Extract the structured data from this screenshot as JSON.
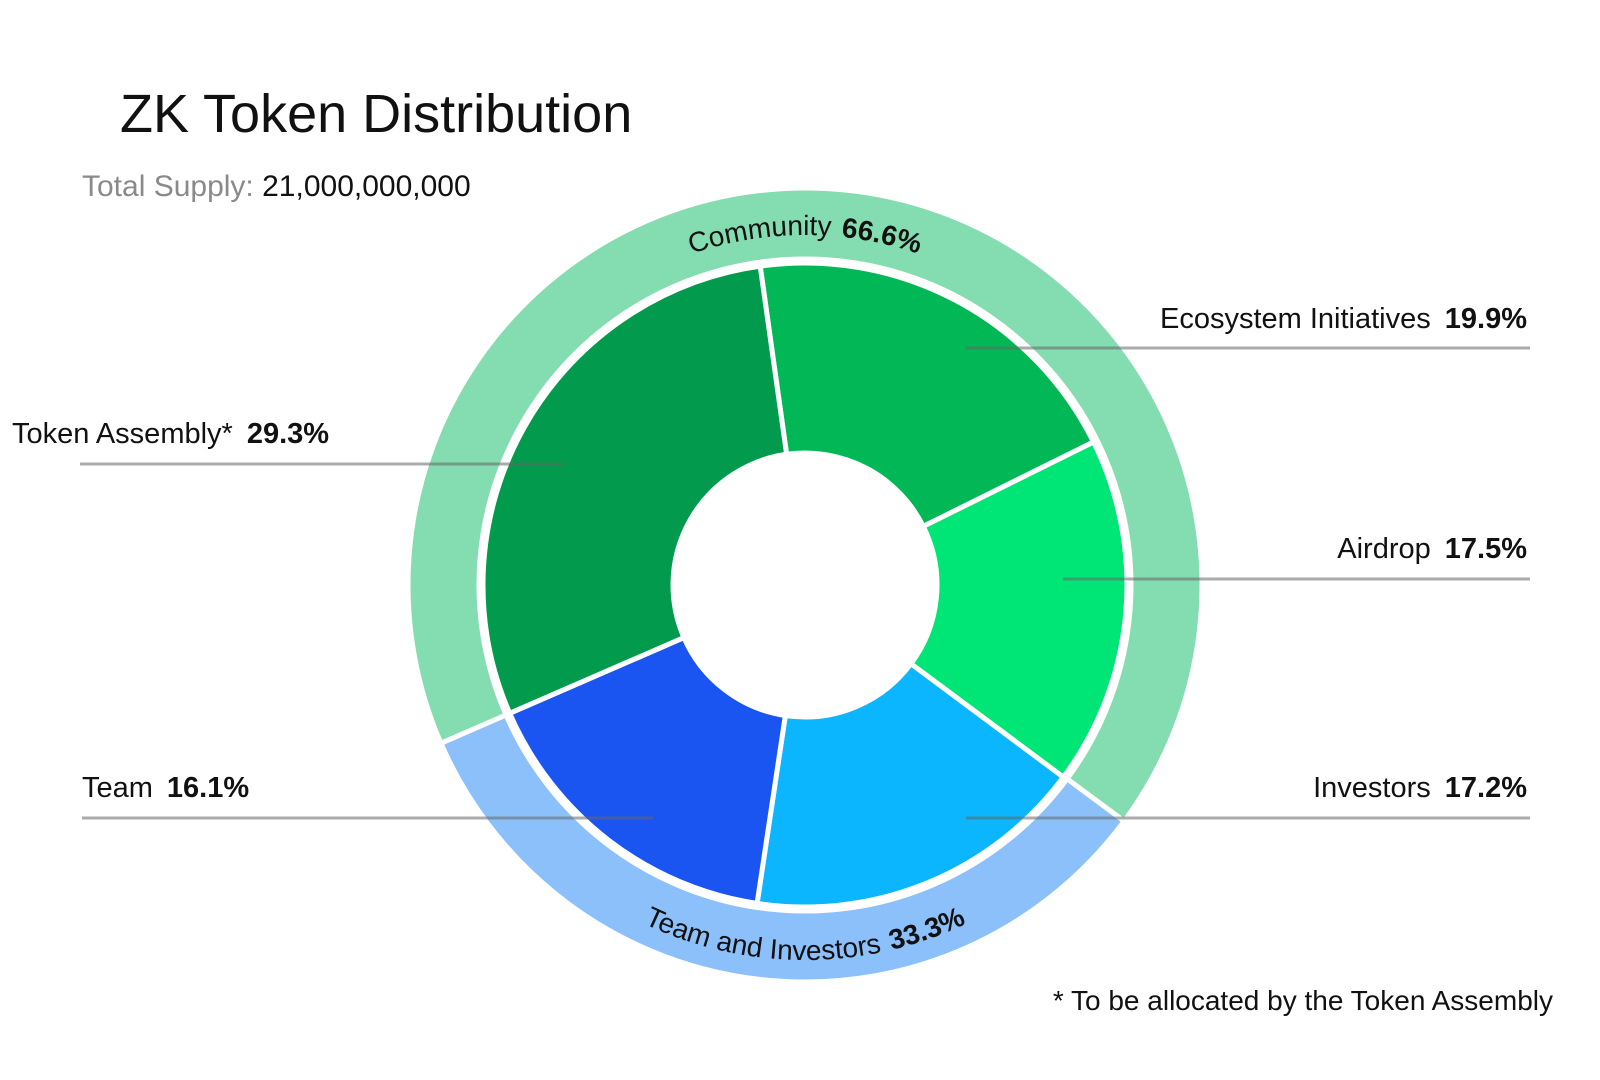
{
  "chart_data": {
    "type": "donut",
    "title": "ZK Token Distribution",
    "subtitle_label": "Total Supply:",
    "subtitle_value": "21,000,000,000",
    "footnote": "* To be allocated by the Token Assembly",
    "inner": {
      "categories": [
        "Ecosystem Initiatives",
        "Airdrop",
        "Investors",
        "Team",
        "Token Assembly*"
      ],
      "values": [
        19.9,
        17.5,
        17.2,
        16.1,
        29.3
      ],
      "value_labels": [
        "19.9%",
        "17.5%",
        "17.2%",
        "16.1%",
        "29.3%"
      ],
      "colors": [
        "#02b856",
        "#00e676",
        "#0bb6fe",
        "#1a55f1",
        "#029a4c"
      ]
    },
    "outer": {
      "categories": [
        "Community",
        "Team and Investors"
      ],
      "values": [
        66.6,
        33.3
      ],
      "value_labels": [
        "66.6%",
        "33.3%"
      ],
      "colors": [
        "#84dcb1",
        "#8cc0fa"
      ]
    }
  }
}
